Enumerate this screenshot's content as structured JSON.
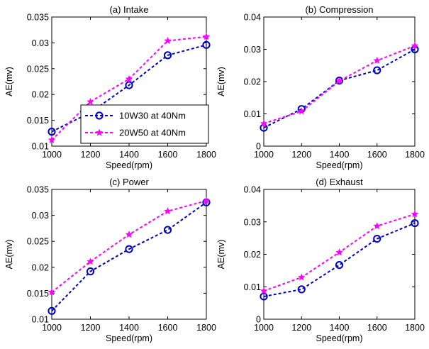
{
  "legend": {
    "entries": [
      {
        "label": "10W30 at 40Nm",
        "color": "#0000cc",
        "marker": "circle"
      },
      {
        "label": "20W50 at 40Nm",
        "color": "#ff00ff",
        "marker": "star"
      }
    ],
    "placement": "inside lower-right of panel (a)"
  },
  "chart_data": [
    {
      "type": "line",
      "title": "(a) Intake",
      "xlabel": "Speed(rpm)",
      "ylabel": "AE(mv)",
      "x": [
        1000,
        1200,
        1400,
        1600,
        1800
      ],
      "xticks": [
        "1000",
        "1200",
        "1400",
        "1600",
        "1800"
      ],
      "xlim": [
        1000,
        1800
      ],
      "ylim": [
        0.01,
        0.035
      ],
      "yticks": [
        "0.01",
        "0.015",
        "0.02",
        "0.025",
        "0.03",
        "0.035"
      ],
      "grid": false,
      "series": [
        {
          "name": "10W30 at 40Nm",
          "values": [
            0.0128,
            0.0165,
            0.0218,
            0.0276,
            0.0296
          ]
        },
        {
          "name": "20W50 at 40Nm",
          "values": [
            0.0112,
            0.0186,
            0.023,
            0.0304,
            0.0312
          ]
        }
      ]
    },
    {
      "type": "line",
      "title": "(b) Compression",
      "xlabel": "Speed(rpm)",
      "ylabel": "AE(mv)",
      "x": [
        1000,
        1200,
        1400,
        1600,
        1800
      ],
      "xticks": [
        "1000",
        "1200",
        "1400",
        "1600",
        "1800"
      ],
      "xlim": [
        1000,
        1800
      ],
      "ylim": [
        0,
        0.04
      ],
      "yticks": [
        "0",
        "0.01",
        "0.02",
        "0.03",
        "0.04"
      ],
      "grid": false,
      "series": [
        {
          "name": "10W30 at 40Nm",
          "values": [
            0.0057,
            0.0115,
            0.0203,
            0.0235,
            0.03
          ]
        },
        {
          "name": "20W50 at 40Nm",
          "values": [
            0.007,
            0.0108,
            0.0202,
            0.0265,
            0.0311
          ]
        }
      ]
    },
    {
      "type": "line",
      "title": "(c) Power",
      "xlabel": "Speed(rpm)",
      "ylabel": "AE(mv)",
      "x": [
        1000,
        1200,
        1400,
        1600,
        1800
      ],
      "xticks": [
        "1000",
        "1200",
        "1400",
        "1600",
        "1800"
      ],
      "xlim": [
        1000,
        1800
      ],
      "ylim": [
        0.01,
        0.035
      ],
      "yticks": [
        "0.01",
        "0.015",
        "0.02",
        "0.025",
        "0.03",
        "0.035"
      ],
      "grid": false,
      "series": [
        {
          "name": "10W30 at 40Nm",
          "values": [
            0.0116,
            0.0192,
            0.0235,
            0.0272,
            0.0325
          ]
        },
        {
          "name": "20W50 at 40Nm",
          "values": [
            0.0152,
            0.0211,
            0.0263,
            0.0308,
            0.0328
          ]
        }
      ]
    },
    {
      "type": "line",
      "title": "(d) Exhaust",
      "xlabel": "Speed(rpm)",
      "ylabel": "AE(mv)",
      "x": [
        1000,
        1200,
        1400,
        1600,
        1800
      ],
      "xticks": [
        "1000",
        "1200",
        "1400",
        "1600",
        "1800"
      ],
      "xlim": [
        1000,
        1800
      ],
      "ylim": [
        0,
        0.04
      ],
      "yticks": [
        "0",
        "0.01",
        "0.02",
        "0.03",
        "0.04"
      ],
      "grid": false,
      "series": [
        {
          "name": "10W30 at 40Nm",
          "values": [
            0.007,
            0.0092,
            0.0167,
            0.0248,
            0.0296
          ]
        },
        {
          "name": "20W50 at 40Nm",
          "values": [
            0.0087,
            0.0129,
            0.0206,
            0.0287,
            0.0324
          ]
        }
      ]
    }
  ]
}
